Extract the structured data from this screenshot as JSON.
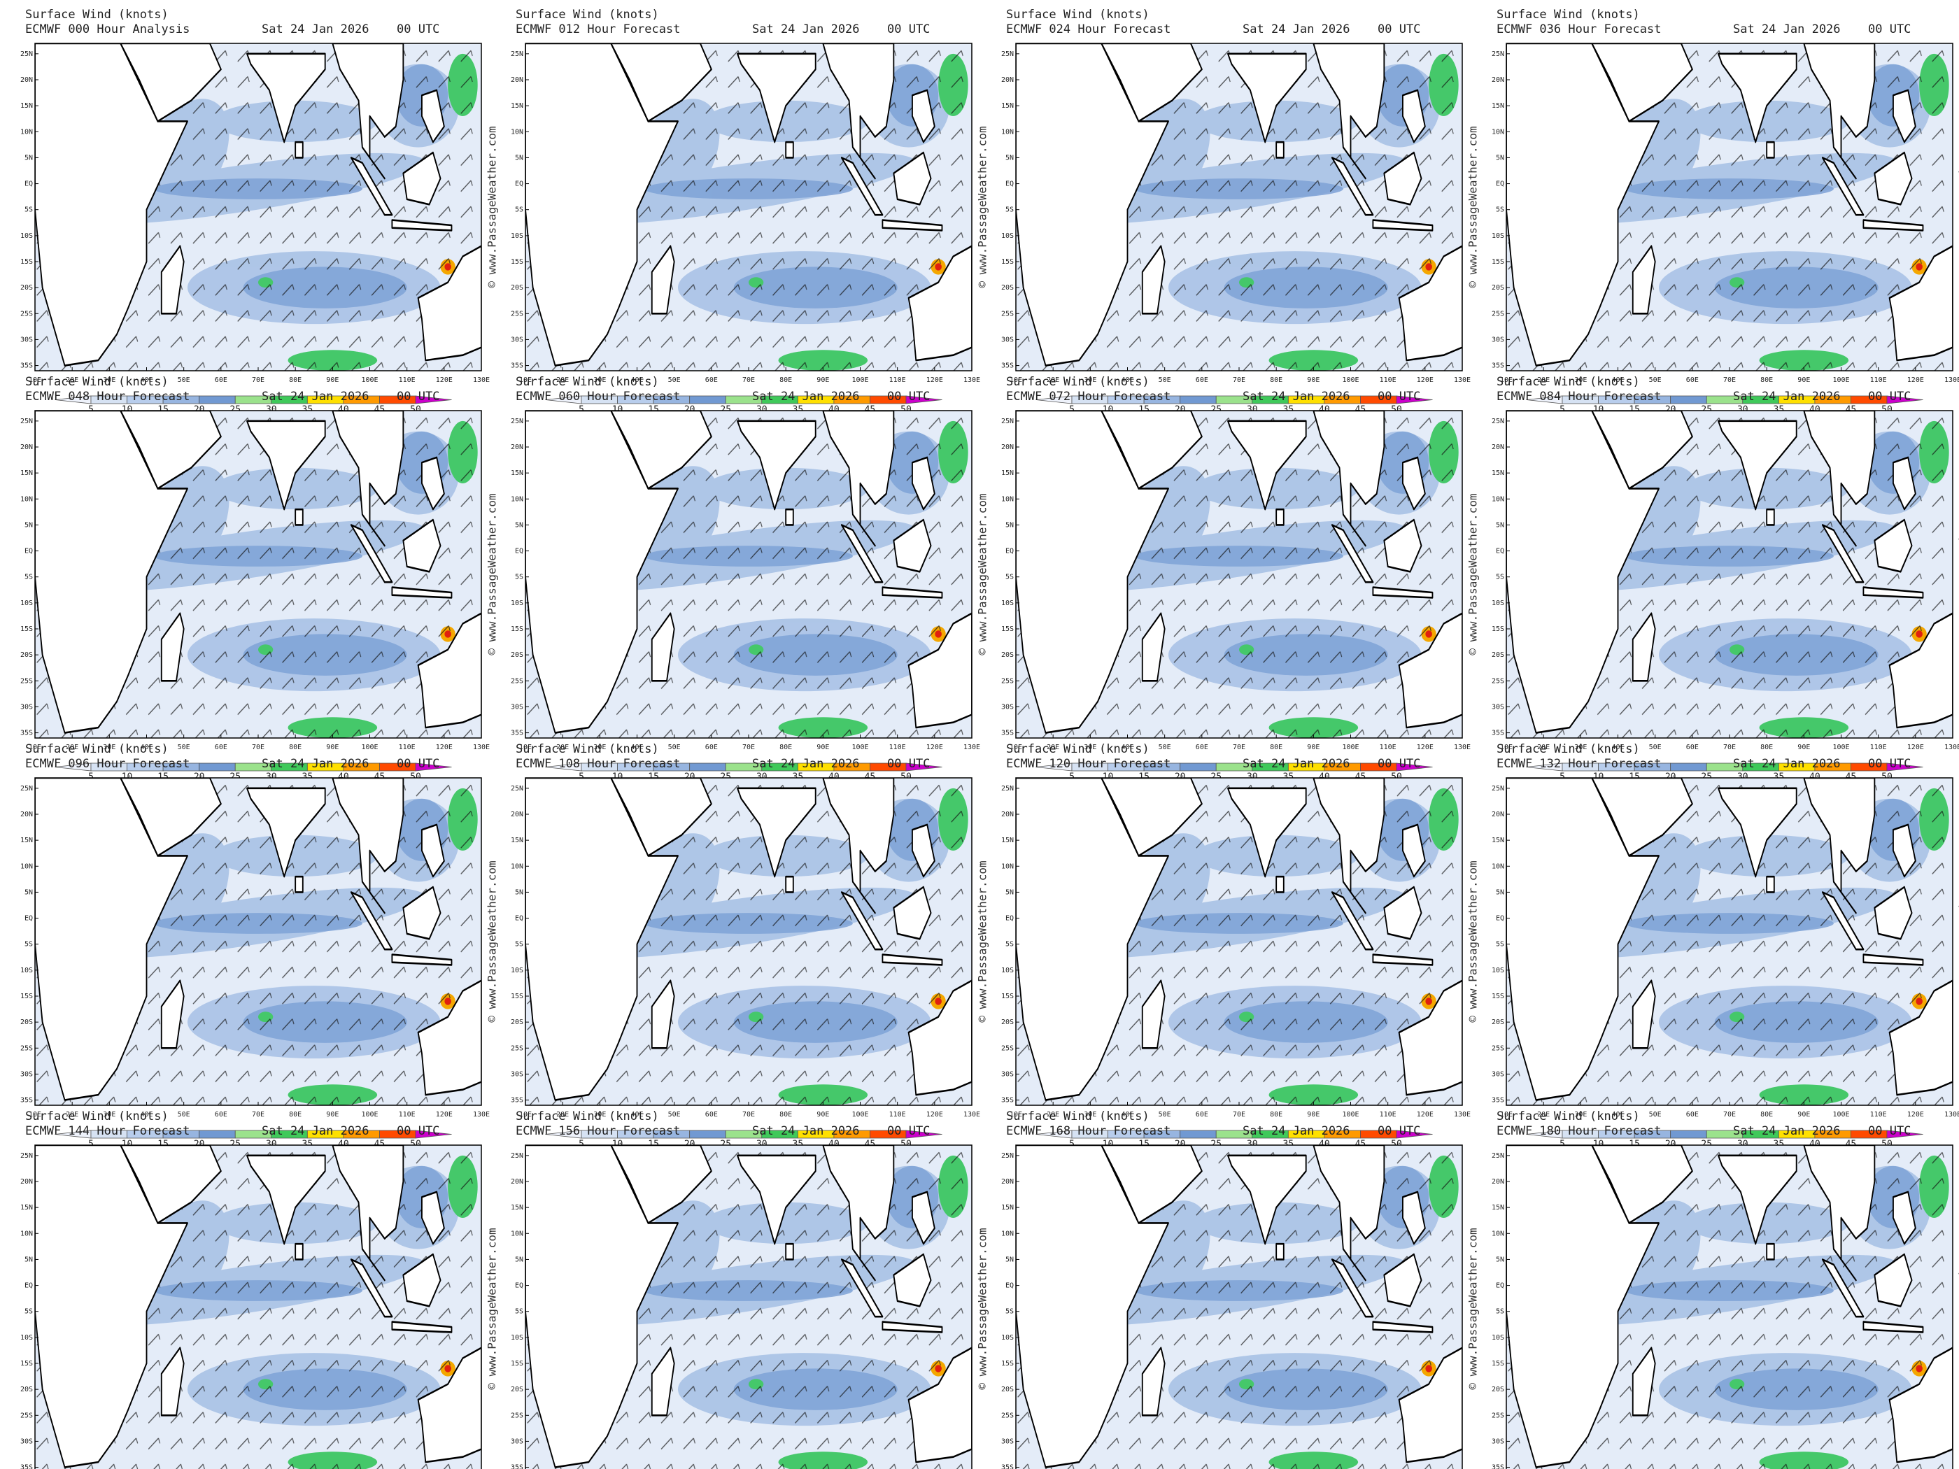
{
  "common": {
    "title": "Surface Wind (knots)",
    "date": "Sat 24 Jan 2026",
    "time": "00 UTC",
    "watermark": "© www.PassageWeather.com",
    "lat_labels": [
      "25N",
      "20N",
      "15N",
      "10N",
      "5N",
      "EQ",
      "5S",
      "10S",
      "15S",
      "20S",
      "25S",
      "30S",
      "35S"
    ],
    "lon_labels": [
      "10E",
      "20E",
      "30E",
      "40E",
      "50E",
      "60E",
      "70E",
      "80E",
      "90E",
      "100E",
      "110E",
      "120E",
      "130E"
    ],
    "colorbar_labels": [
      5,
      10,
      15,
      20,
      25,
      30,
      35,
      40,
      45,
      50
    ]
  },
  "panels": [
    {
      "forecast": "ECMWF 000 Hour Analysis"
    },
    {
      "forecast": "ECMWF 012 Hour Forecast"
    },
    {
      "forecast": "ECMWF 024 Hour Forecast"
    },
    {
      "forecast": "ECMWF 036 Hour Forecast"
    },
    {
      "forecast": "ECMWF 048 Hour Forecast"
    },
    {
      "forecast": "ECMWF 060 Hour Forecast"
    },
    {
      "forecast": "ECMWF 072 Hour Forecast"
    },
    {
      "forecast": "ECMWF 084 Hour Forecast"
    },
    {
      "forecast": "ECMWF 096 Hour Forecast"
    },
    {
      "forecast": "ECMWF 108 Hour Forecast"
    },
    {
      "forecast": "ECMWF 120 Hour Forecast"
    },
    {
      "forecast": "ECMWF 132 Hour Forecast"
    },
    {
      "forecast": "ECMWF 144 Hour Forecast"
    },
    {
      "forecast": "ECMWF 156 Hour Forecast"
    },
    {
      "forecast": "ECMWF 168 Hour Forecast"
    },
    {
      "forecast": "ECMWF 180 Hour Forecast"
    }
  ]
}
